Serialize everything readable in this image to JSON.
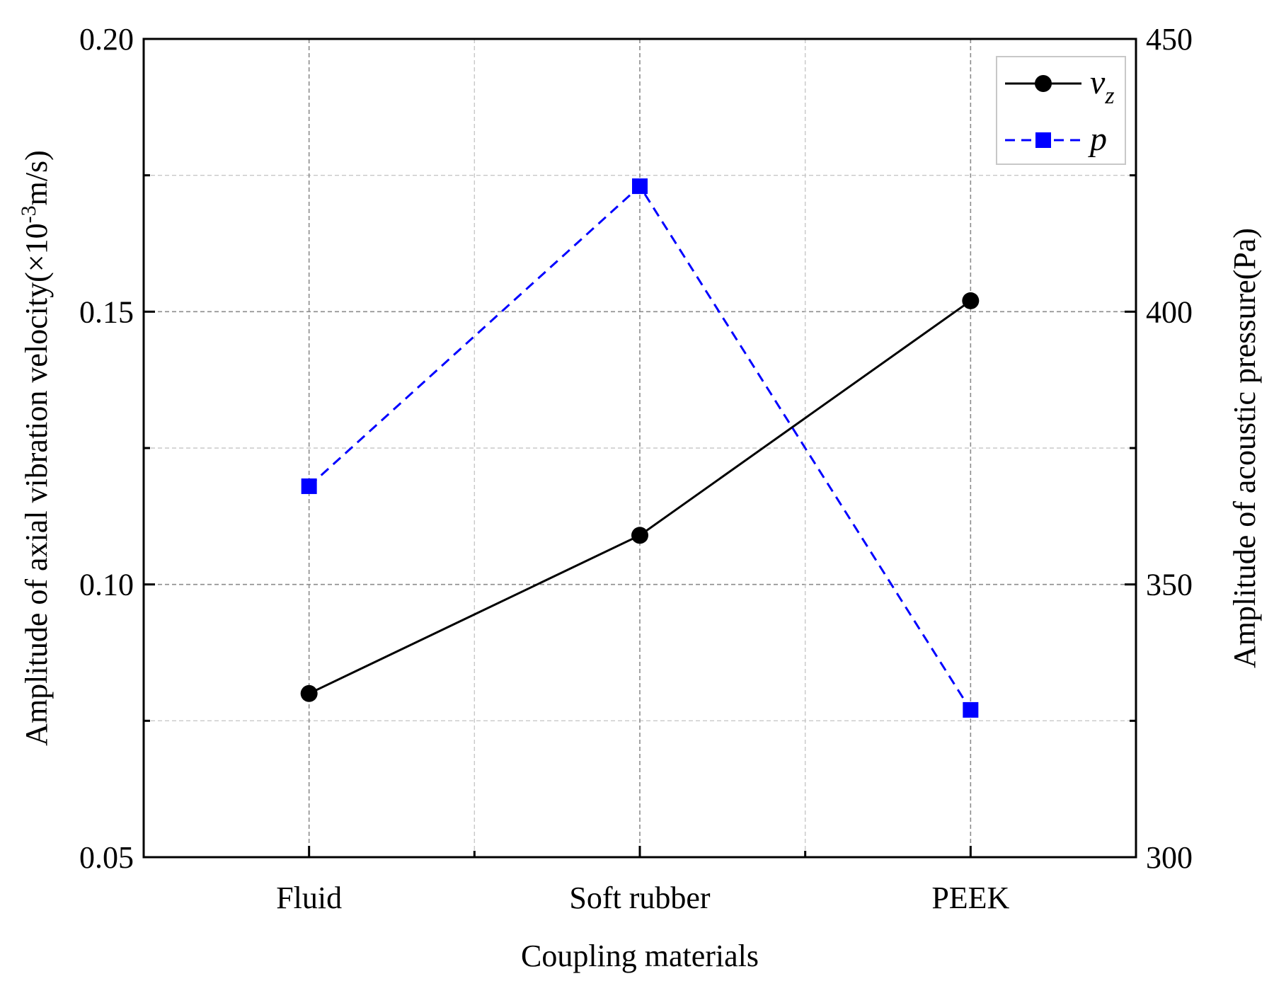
{
  "chart_data": {
    "type": "line",
    "xlabel": "Coupling materials",
    "categories": [
      "Fluid",
      "Soft rubber",
      "PEEK"
    ],
    "y_left": {
      "label_prefix": "Amplitude of axial vibration velocity(×10",
      "label_sup": "-3",
      "label_suffix": "m/s)",
      "ylim": [
        0.05,
        0.2
      ],
      "major_ticks": [
        0.05,
        0.1,
        0.15,
        0.2
      ],
      "major_tick_labels": [
        "0.05",
        "0.10",
        "0.15",
        "0.20"
      ],
      "minor_ticks": [
        0.075,
        0.125,
        0.175
      ]
    },
    "y_right": {
      "label": "Amplitude of acoustic pressure(Pa)",
      "ylim": [
        300,
        450
      ],
      "major_ticks": [
        300,
        350,
        400,
        450
      ],
      "major_tick_labels": [
        "300",
        "350",
        "400",
        "450"
      ],
      "minor_ticks": [
        325,
        375,
        425
      ]
    },
    "series": [
      {
        "name": "v",
        "name_sub": "z",
        "axis": "left",
        "values": [
          0.08,
          0.109,
          0.152
        ],
        "color": "#000000",
        "marker": "circle",
        "line_style": "solid"
      },
      {
        "name": "p",
        "name_sub": "",
        "axis": "right",
        "values": [
          368,
          423,
          327
        ],
        "color": "#0000ff",
        "marker": "square",
        "line_style": "dashed"
      }
    ],
    "grid": true,
    "legend_position": "top-right"
  }
}
